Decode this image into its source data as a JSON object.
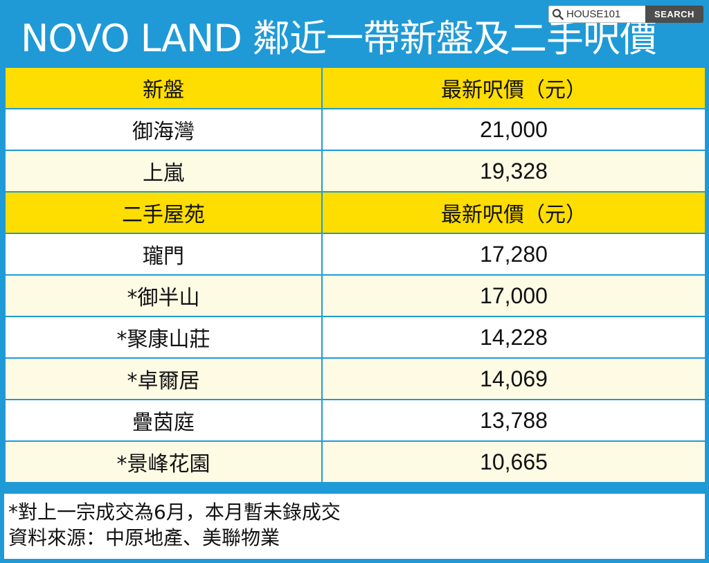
{
  "title": "NOVO LAND 鄰近一帶新盤及二手呎價",
  "search": {
    "field_text": "HOUSE101",
    "button_label": "SEARCH",
    "icon": "search-icon"
  },
  "new_section": {
    "header": {
      "name": "新盤",
      "price": "最新呎價（元）"
    },
    "rows": [
      {
        "name": "御海灣",
        "price": "21,000"
      },
      {
        "name": "上嵐",
        "price": "19,328"
      }
    ]
  },
  "second_section": {
    "header": {
      "name": "二手屋苑",
      "price": "最新呎價（元）"
    },
    "rows": [
      {
        "name": "瓏門",
        "price": "17,280"
      },
      {
        "name": "*御半山",
        "price": "17,000"
      },
      {
        "name": "*聚康山莊",
        "price": "14,228"
      },
      {
        "name": "*卓爾居",
        "price": "14,069"
      },
      {
        "name": "疊茵庭",
        "price": "13,788"
      },
      {
        "name": "*景峰花園",
        "price": "10,665"
      }
    ]
  },
  "notes": {
    "line1": "*對上一宗成交為6月，本月暫未錄成交",
    "line2": "資料來源：中原地產、美聯物業"
  },
  "colors": {
    "frame": "#1f9ad6",
    "header_bg": "#fedd00",
    "row_alt": "#fdfbe4"
  }
}
